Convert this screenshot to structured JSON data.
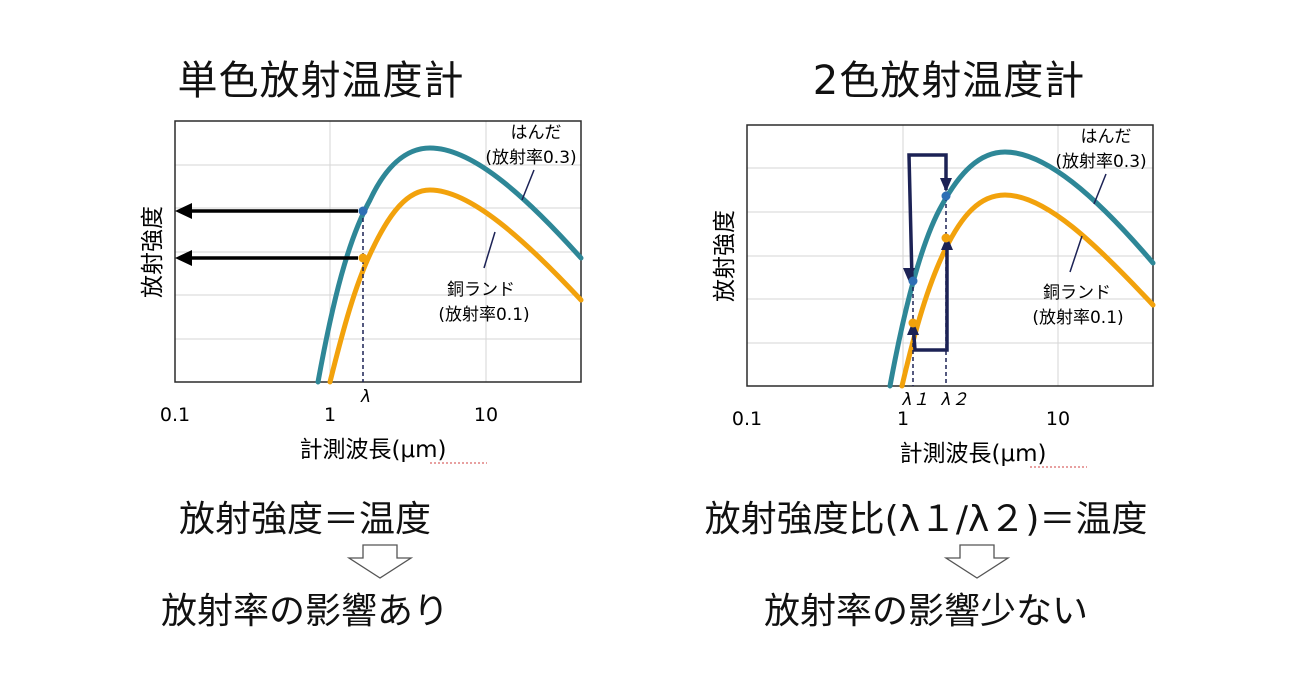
{
  "left": {
    "title": "単色放射温度計",
    "ylabel": "放射強度",
    "xlabel": "計測波長(μm)",
    "ticks": [
      "0.1",
      "1",
      "10"
    ],
    "lambda": "λ",
    "solder": {
      "name": "はんだ",
      "emissivity": "(放射率0.3)"
    },
    "copper": {
      "name": "銅ランド",
      "emissivity": "(放射率0.1)"
    },
    "equation": "放射強度＝温度",
    "result": "放射率の影響あり"
  },
  "right": {
    "title": "2色放射温度計",
    "ylabel": "放射強度",
    "xlabel": "計測波長(μm)",
    "ticks": [
      "0.1",
      "1",
      "10"
    ],
    "lambda1": "λ１",
    "lambda2": "λ２",
    "solder": {
      "name": "はんだ",
      "emissivity": "(放射率0.3)"
    },
    "copper": {
      "name": "銅ランド",
      "emissivity": "(放射率0.1)"
    },
    "equation": "放射強度比(λ１/λ２)＝温度",
    "result": "放射率の影響少ない"
  },
  "colors": {
    "solder_curve": "#2e8797",
    "copper_curve": "#f2a20c",
    "frame": "#2b2b2b",
    "grid": "#d6d6d6",
    "marker": "#2e6fb5",
    "loop": "#1c2255",
    "arrow": "#000000"
  }
}
